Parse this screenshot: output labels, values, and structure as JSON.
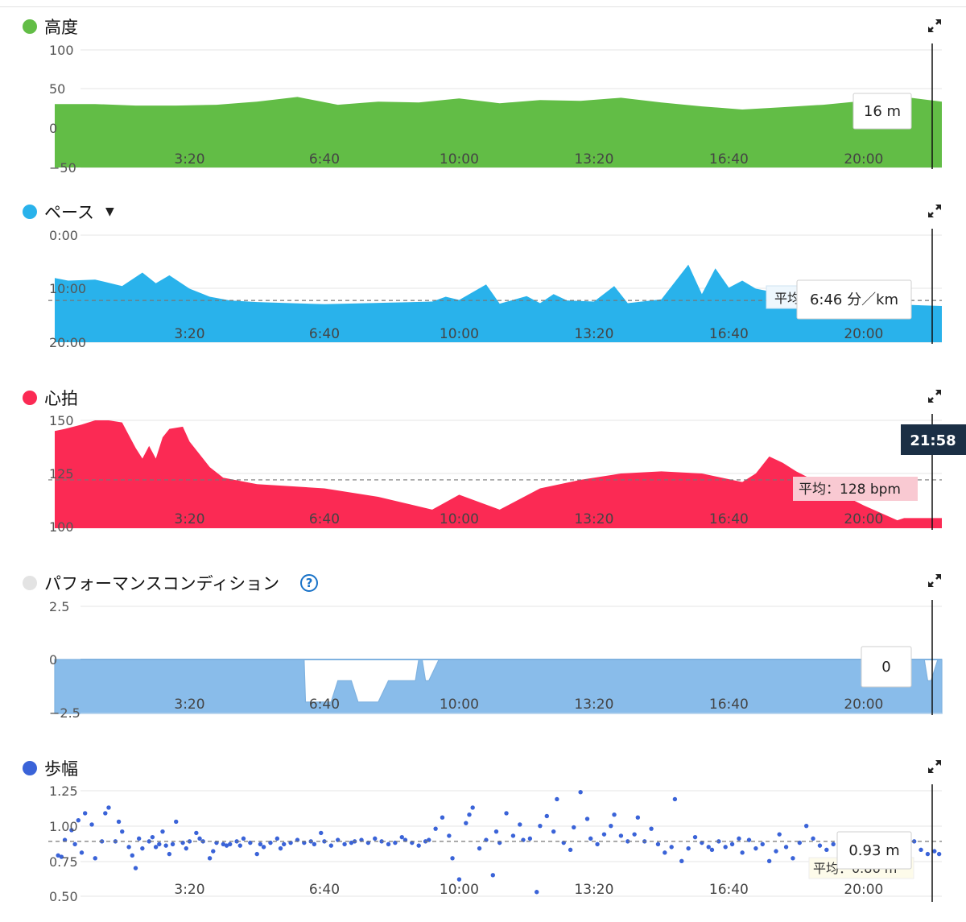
{
  "colors": {
    "altitude": "#62bd46",
    "pace": "#29b2eb",
    "heart": "#fb2a54",
    "condition_dot": "#e3e3e3",
    "condition_area": "#89bcea",
    "stride": "#3a63d8",
    "dark_label": "#1b2f45"
  },
  "x_ticks": [
    "3:20",
    "6:40",
    "10:00",
    "13:20",
    "16:40",
    "20:00"
  ],
  "panels": {
    "altitude": {
      "title": "高度",
      "tooltip": "16 m"
    },
    "pace": {
      "title": "ペース",
      "tooltip": "6:46 分／km",
      "avg_label": "平均"
    },
    "heart": {
      "title": "心拍",
      "avg_label": "平均：128 bpm",
      "time_label": "21:58"
    },
    "condition": {
      "title": "パフォーマンスコンディション",
      "help": "?",
      "tooltip": "0"
    },
    "stride": {
      "title": "歩幅",
      "tooltip": "0.93 m",
      "avg_label": "平均：0.86 m"
    }
  },
  "chart_data": [
    {
      "type": "area",
      "title": "高度",
      "unit": "m",
      "x_axis": "elapsed time (min)",
      "yticks": [
        "100",
        "50",
        "0",
        "−50"
      ],
      "ylim": [
        -50,
        100
      ],
      "grid": true,
      "x": [
        0,
        60,
        120,
        180,
        240,
        300,
        360,
        420,
        480,
        540,
        600,
        660,
        720,
        780,
        840,
        900,
        960,
        1020,
        1080,
        1140,
        1200,
        1260,
        1316
      ],
      "series": [
        {
          "values": [
            19,
            19,
            21,
            21,
            20,
            16,
            10,
            20,
            16,
            17,
            12,
            18,
            14,
            15,
            11,
            17,
            22,
            26,
            23,
            20,
            15,
            10,
            16
          ]
        }
      ],
      "cursor_value": 16
    },
    {
      "type": "area",
      "title": "ペース",
      "unit": "分/km",
      "inverted": true,
      "yticks": [
        "0:00",
        "10:00",
        "20:00"
      ],
      "ylim": [
        20,
        0
      ],
      "average": 7.8,
      "grid": true,
      "x": [
        0,
        20,
        60,
        100,
        130,
        150,
        170,
        200,
        230,
        260,
        300,
        400,
        500,
        560,
        580,
        600,
        640,
        660,
        700,
        720,
        740,
        760,
        800,
        830,
        850,
        900,
        940,
        960,
        980,
        1000,
        1020,
        1040,
        1060,
        1080,
        1100,
        1120,
        1140,
        1200,
        1260,
        1316
      ],
      "series": [
        {
          "values": [
            12,
            11.5,
            11.7,
            10.5,
            13,
            11,
            12.5,
            10,
            8.5,
            7.8,
            7.5,
            7.1,
            7.4,
            7.6,
            8.5,
            7.9,
            10.8,
            7.2,
            8.6,
            7.3,
            9,
            7.8,
            7.6,
            10.5,
            7.3,
            8,
            14.5,
            9,
            13.8,
            10.2,
            11.5,
            10,
            9.5,
            8.5,
            8.2,
            6.9,
            7.2,
            6.8,
            7,
            6.77
          ]
        }
      ],
      "cursor_value": 6.77
    },
    {
      "type": "area",
      "title": "心拍",
      "unit": "bpm",
      "yticks": [
        "150",
        "125",
        "100"
      ],
      "ylim": [
        100,
        150
      ],
      "average": 128,
      "grid": true,
      "x": [
        0,
        15,
        40,
        60,
        80,
        100,
        110,
        120,
        130,
        140,
        150,
        160,
        170,
        190,
        200,
        230,
        250,
        300,
        400,
        480,
        560,
        600,
        660,
        720,
        780,
        840,
        900,
        960,
        1020,
        1040,
        1060,
        1080,
        1100,
        1200,
        1250,
        1260,
        1310,
        1316
      ],
      "series": [
        {
          "values": [
            105,
            104,
            102,
            100,
            100,
            101,
            107,
            113,
            118,
            112,
            118,
            108,
            104,
            103,
            110,
            122,
            127,
            130,
            132,
            136,
            142,
            135,
            142,
            132,
            128,
            125,
            124,
            125,
            129,
            125,
            117,
            120,
            124,
            140,
            147,
            146,
            146,
            146
          ]
        }
      ],
      "cursor_time": "21:58"
    },
    {
      "type": "area",
      "title": "パフォーマンスコンディション",
      "yticks": [
        "2.5",
        "0",
        "−2.5"
      ],
      "ylim": [
        -2.5,
        2.5
      ],
      "grid": true,
      "x": [
        0,
        370,
        372,
        410,
        420,
        440,
        450,
        480,
        495,
        500,
        535,
        540,
        545,
        550,
        555,
        570,
        575,
        1290,
        1295,
        1300,
        1310,
        1316
      ],
      "series": [
        {
          "values": [
            0,
            0,
            2,
            2,
            1,
            1,
            2,
            2,
            1,
            1,
            1,
            0,
            0,
            1,
            1,
            0,
            0,
            0,
            1,
            1,
            0,
            0
          ]
        }
      ],
      "cursor_value": 0
    },
    {
      "type": "scatter",
      "title": "歩幅",
      "unit": "m",
      "yticks": [
        "1.25",
        "1.00",
        "0.75",
        "0.50"
      ],
      "ylim": [
        0.5,
        1.25
      ],
      "average": 0.86,
      "grid": true,
      "x": [
        5,
        10,
        15,
        25,
        30,
        35,
        40,
        45,
        55,
        60,
        70,
        75,
        80,
        90,
        95,
        100,
        110,
        115,
        120,
        125,
        130,
        140,
        145,
        150,
        155,
        160,
        165,
        170,
        175,
        180,
        190,
        195,
        200,
        210,
        215,
        220,
        230,
        235,
        240,
        250,
        255,
        260,
        270,
        275,
        280,
        290,
        300,
        305,
        310,
        320,
        330,
        335,
        340,
        350,
        360,
        370,
        380,
        385,
        395,
        400,
        410,
        420,
        430,
        440,
        445,
        455,
        465,
        475,
        485,
        495,
        505,
        515,
        520,
        530,
        540,
        550,
        555,
        565,
        575,
        585,
        590,
        600,
        610,
        615,
        620,
        630,
        640,
        650,
        655,
        660,
        670,
        680,
        690,
        695,
        705,
        715,
        720,
        730,
        740,
        745,
        755,
        765,
        770,
        780,
        790,
        795,
        805,
        815,
        825,
        830,
        840,
        850,
        860,
        865,
        875,
        885,
        895,
        905,
        915,
        920,
        930,
        940,
        950,
        960,
        970,
        975,
        985,
        995,
        1005,
        1015,
        1020,
        1030,
        1040,
        1050,
        1060,
        1070,
        1075,
        1085,
        1095,
        1105,
        1115,
        1125,
        1135,
        1145,
        1155,
        1165,
        1175,
        1185,
        1195,
        1205,
        1215,
        1225,
        1235,
        1245,
        1255,
        1265,
        1275,
        1285,
        1295,
        1305,
        1312
      ],
      "series": [
        {
          "values": [
            0.96,
            0.97,
            0.85,
            0.78,
            0.88,
            0.71,
            0.94,
            0.66,
            0.74,
            0.98,
            0.86,
            0.66,
            0.62,
            0.86,
            0.72,
            0.79,
            0.9,
            0.96,
            1.05,
            0.84,
            0.91,
            0.86,
            0.83,
            0.9,
            0.88,
            0.79,
            0.89,
            0.95,
            0.88,
            0.72,
            0.87,
            0.91,
            0.86,
            0.8,
            0.84,
            0.86,
            0.98,
            0.93,
            0.87,
            0.88,
            0.89,
            0.88,
            0.86,
            0.89,
            0.84,
            0.87,
            0.95,
            0.88,
            0.9,
            0.87,
            0.84,
            0.91,
            0.88,
            0.87,
            0.85,
            0.87,
            0.86,
            0.88,
            0.8,
            0.86,
            0.89,
            0.85,
            0.88,
            0.87,
            0.86,
            0.85,
            0.87,
            0.84,
            0.86,
            0.88,
            0.87,
            0.83,
            0.85,
            0.87,
            0.89,
            0.86,
            0.85,
            0.77,
            0.69,
            0.82,
            0.98,
            1.13,
            0.73,
            0.67,
            0.62,
            0.91,
            0.85,
            1.1,
            0.79,
            0.87,
            0.66,
            0.82,
            0.74,
            0.85,
            0.84,
            1.22,
            0.75,
            0.68,
            0.79,
            0.56,
            0.87,
            0.92,
            0.76,
            0.51,
            0.7,
            0.84,
            0.88,
            0.81,
            0.75,
            0.67,
            0.82,
            0.86,
            0.81,
            0.69,
            0.86,
            0.77,
            0.88,
            0.94,
            0.9,
            0.56,
            1.0,
            0.91,
            0.83,
            0.87,
            0.9,
            0.92,
            0.86,
            0.9,
            0.88,
            0.84,
            0.94,
            0.85,
            0.91,
            0.88,
            1.0,
            0.93,
            0.81,
            0.9,
            0.98,
            0.87,
            0.75,
            0.84,
            0.89,
            0.92,
            0.88,
            0.96,
            0.91,
            0.85,
            0.87,
            0.94,
            0.9,
            0.93,
            0.87,
            0.82,
            0.88,
            0.91,
            0.86,
            0.92,
            0.95,
            0.93,
            0.95
          ]
        }
      ],
      "cursor_value": 0.93
    }
  ]
}
